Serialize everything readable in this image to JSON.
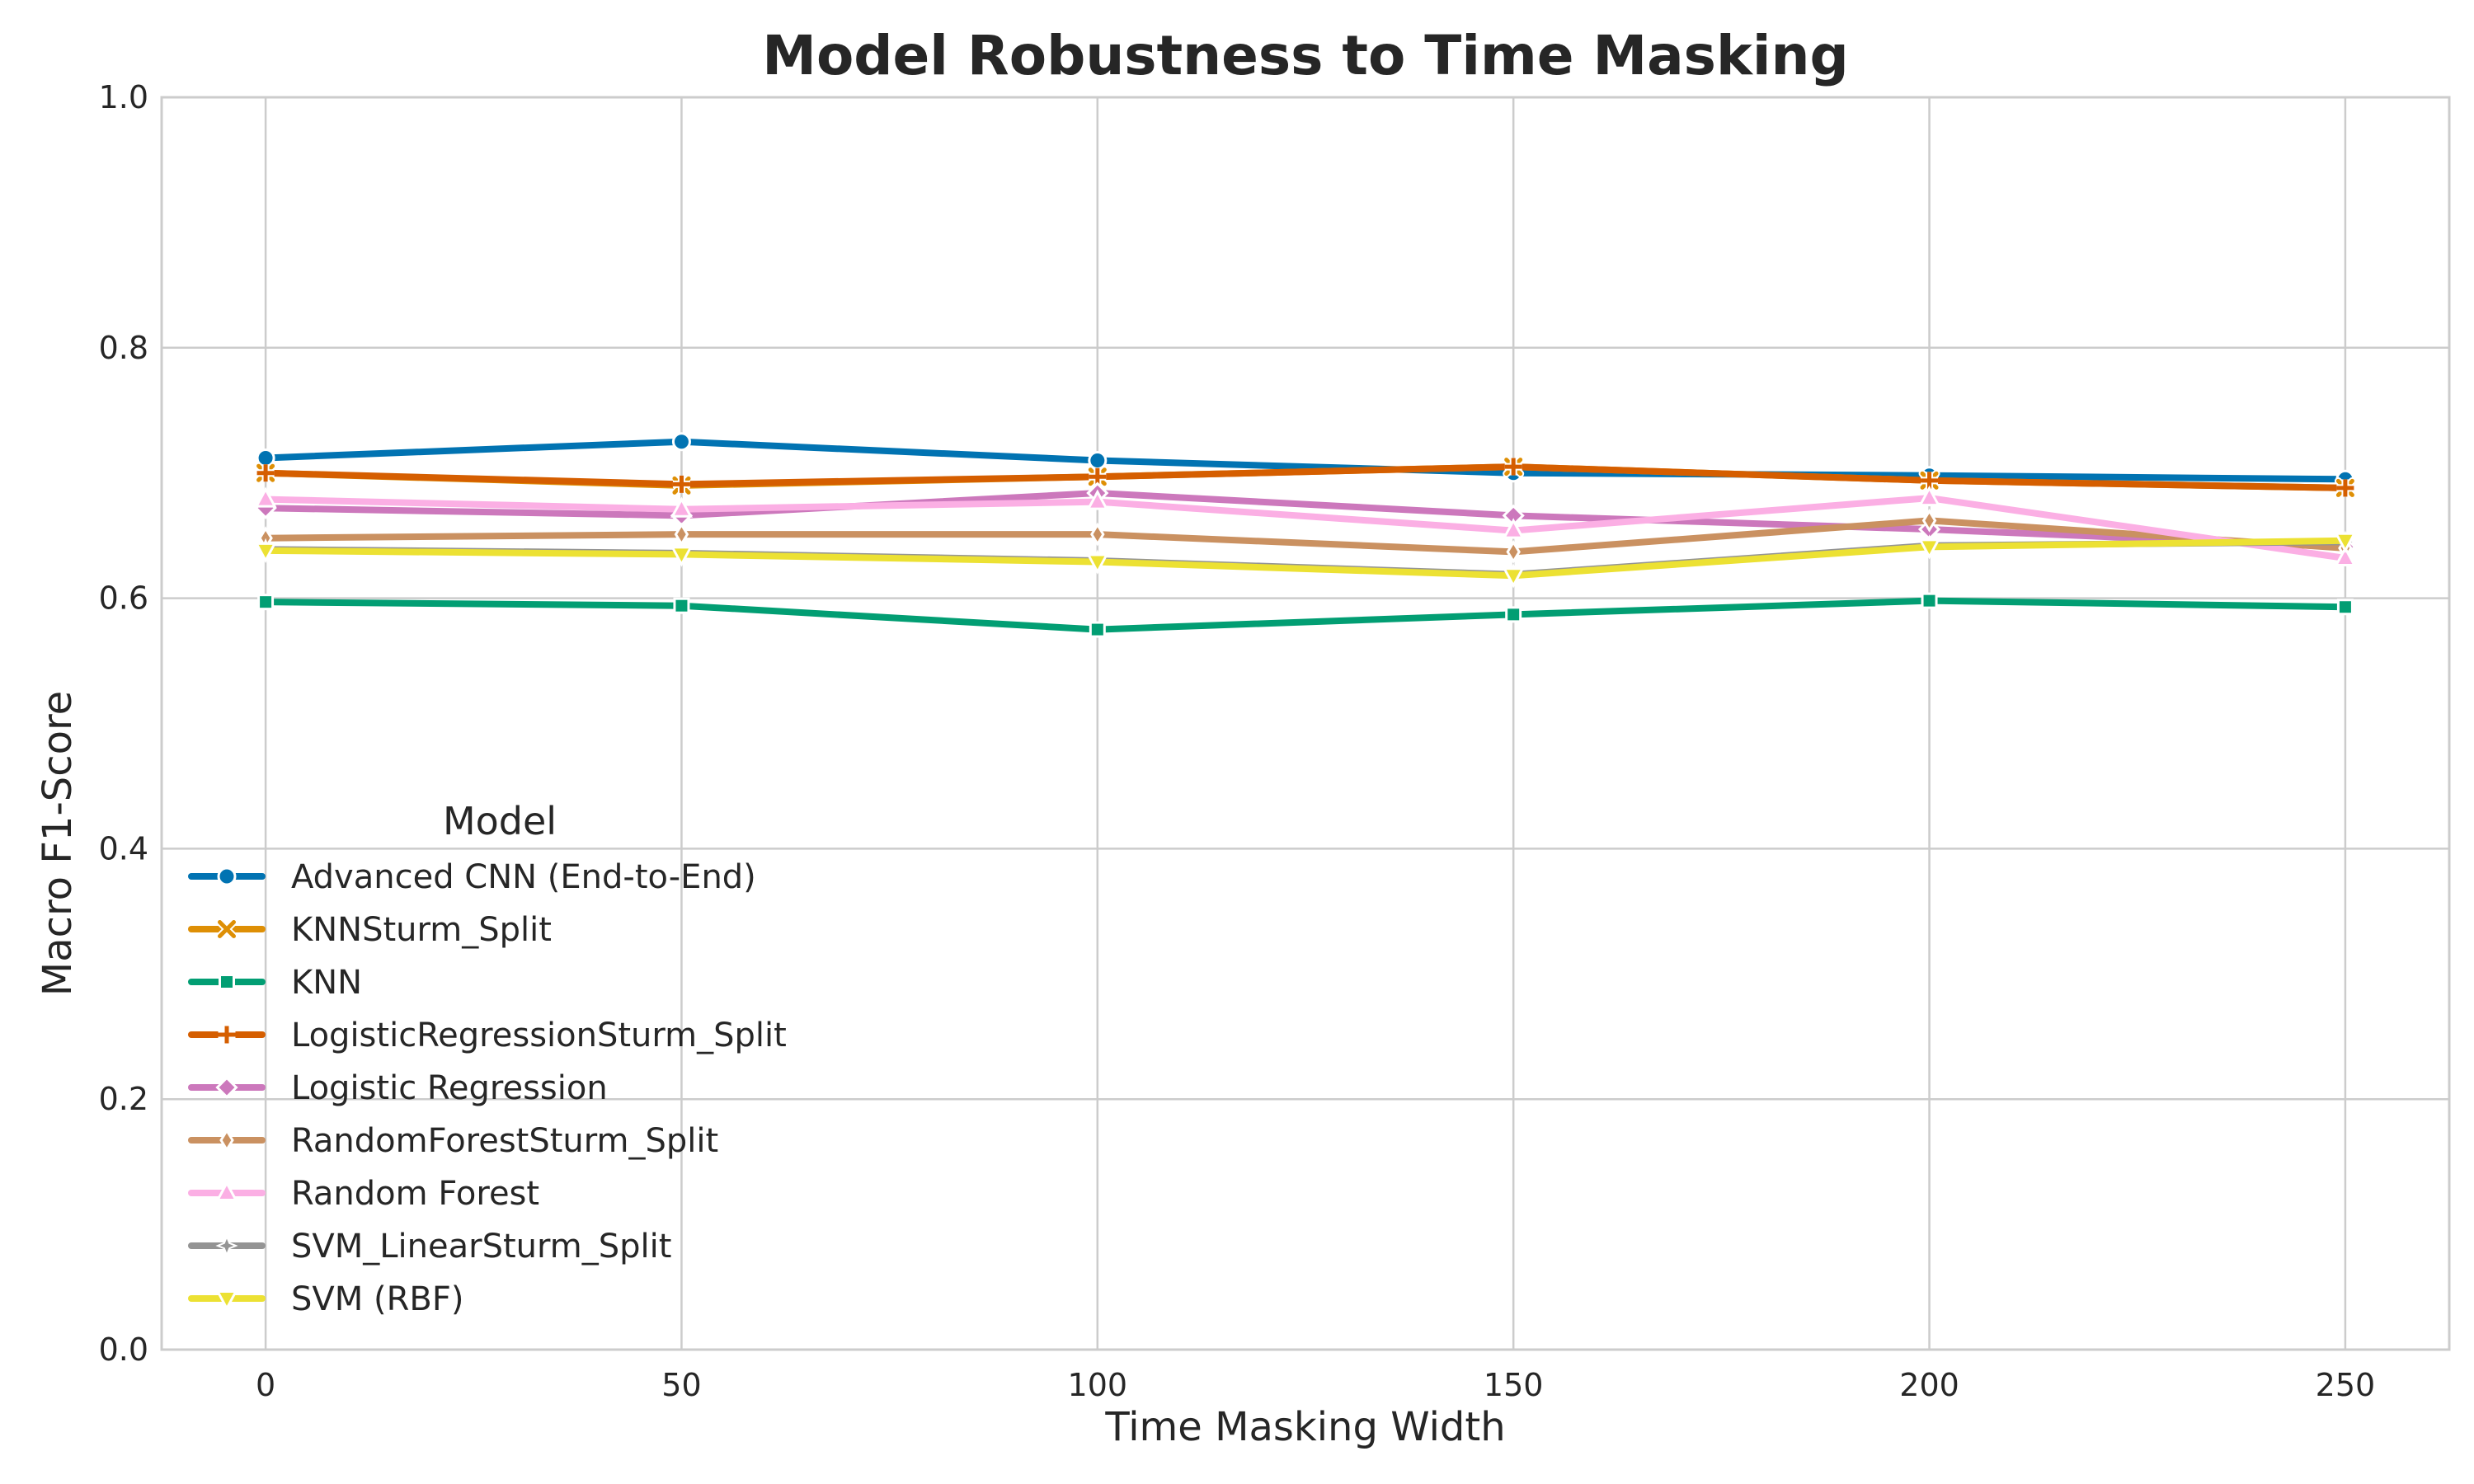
{
  "chart_data": {
    "type": "line",
    "title": "Model Robustness to Time Masking",
    "xlabel": "Time Masking Width",
    "ylabel": "Macro F1-Score",
    "x": [
      0,
      50,
      100,
      150,
      200,
      250
    ],
    "xlim": [
      -12.5,
      262.5
    ],
    "ylim": [
      0,
      1.0
    ],
    "xticks": [
      "0",
      "50",
      "100",
      "150",
      "200",
      "250"
    ],
    "yticks": [
      "0.0",
      "0.2",
      "0.4",
      "0.6",
      "0.8",
      "1.0"
    ],
    "grid": true,
    "legend": {
      "title": "Model",
      "placement": "lower-left"
    },
    "series": [
      {
        "name": "Advanced CNN (End-to-End)",
        "color": "#0173b2",
        "marker": "circle",
        "values": [
          0.712,
          0.725,
          0.71,
          0.7,
          0.698,
          0.695
        ]
      },
      {
        "name": "KNNSturm_Split",
        "color": "#de8f05",
        "marker": "x",
        "values": [
          0.7,
          0.69,
          0.697,
          0.705,
          0.694,
          0.688
        ]
      },
      {
        "name": "KNN",
        "color": "#029e73",
        "marker": "square",
        "values": [
          0.597,
          0.594,
          0.575,
          0.587,
          0.598,
          0.593
        ]
      },
      {
        "name": "LogisticRegressionSturm_Split",
        "color": "#d55e00",
        "marker": "plus",
        "values": [
          0.7,
          0.691,
          0.697,
          0.705,
          0.694,
          0.688
        ]
      },
      {
        "name": "Logistic Regression",
        "color": "#cc78bc",
        "marker": "diamond",
        "values": [
          0.672,
          0.666,
          0.684,
          0.666,
          0.655,
          0.641
        ]
      },
      {
        "name": "RandomForestSturm_Split",
        "color": "#ca9161",
        "marker": "thin-diamond",
        "values": [
          0.648,
          0.651,
          0.651,
          0.637,
          0.662,
          0.64
        ]
      },
      {
        "name": "Random Forest",
        "color": "#fbafe4",
        "marker": "triangle-up",
        "values": [
          0.679,
          0.671,
          0.677,
          0.654,
          0.68,
          0.632
        ]
      },
      {
        "name": "SVM_LinearSturm_Split",
        "color": "#949494",
        "marker": "star",
        "values": [
          0.639,
          0.636,
          0.63,
          0.619,
          0.642,
          0.645
        ]
      },
      {
        "name": "SVM (RBF)",
        "color": "#ece133",
        "marker": "triangle-down",
        "values": [
          0.638,
          0.635,
          0.629,
          0.618,
          0.641,
          0.646
        ]
      }
    ]
  }
}
